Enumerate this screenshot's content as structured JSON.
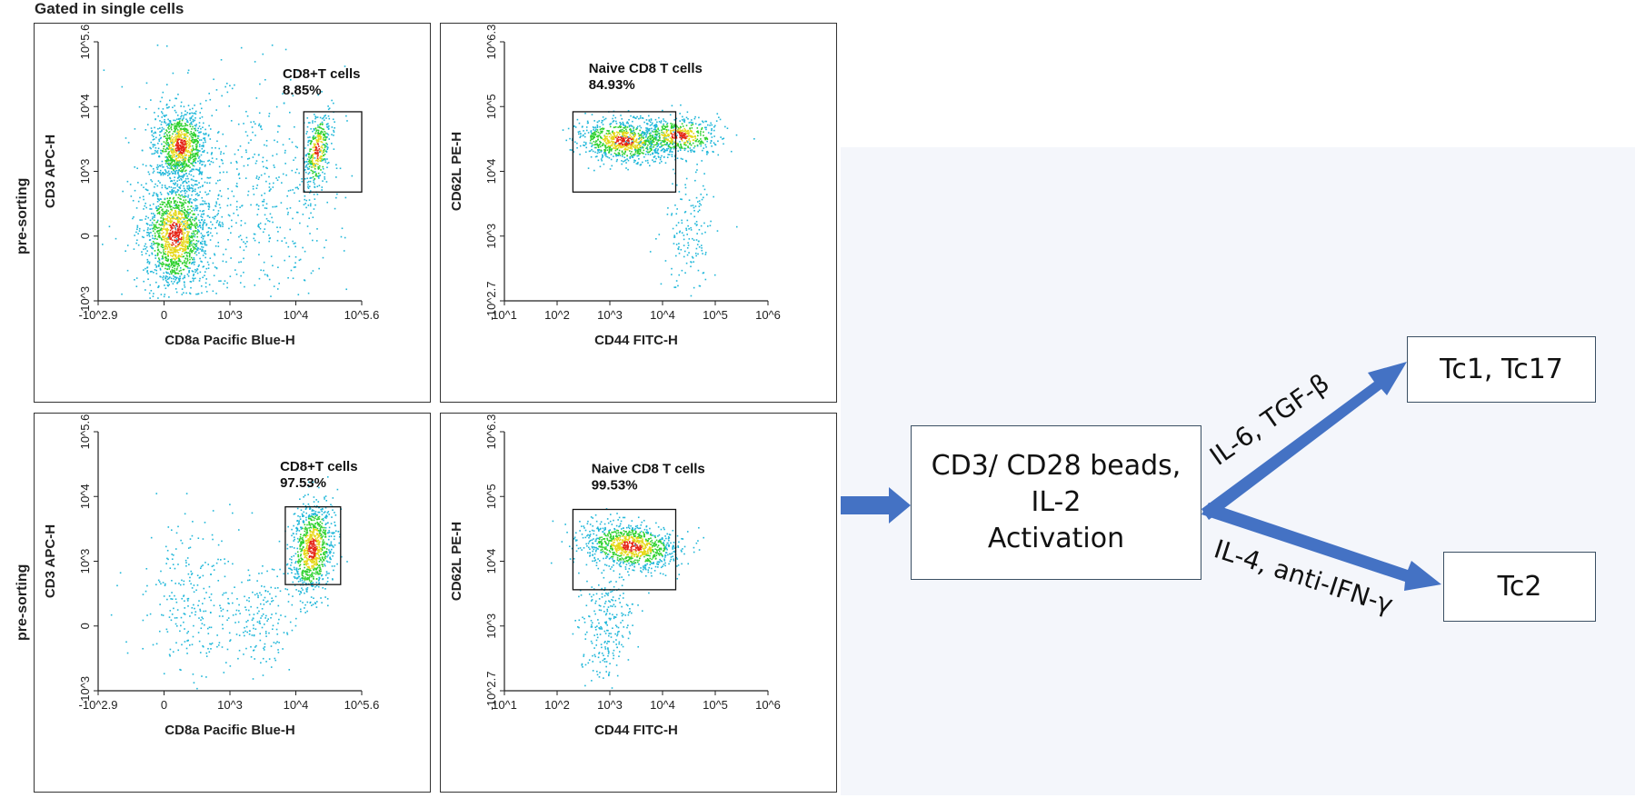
{
  "header": "Gated in single cells",
  "rows": [
    {
      "label": "pre-sorting"
    },
    {
      "label": "pre-sorting"
    }
  ],
  "plots": [
    {
      "id": "cd3-cd8-top",
      "x_label": "CD8a Pacific Blue-H",
      "y_label": "CD3 APC-H",
      "x_ticks": [
        "-10^2.9",
        "0",
        "10^3",
        "10^4",
        "10^5.6"
      ],
      "y_ticks": [
        "10^5.6",
        "10^4",
        "10^3",
        "0",
        "-10^3"
      ],
      "gate_name": "CD8+T cells",
      "gate_pct": "8.85%"
    },
    {
      "id": "cd62l-cd44-top",
      "x_label": "CD44 FITC-H",
      "y_label": "CD62L PE-H",
      "x_ticks": [
        "10^1",
        "10^2",
        "10^3",
        "10^4",
        "10^5",
        "10^6"
      ],
      "y_ticks": [
        "10^6.3",
        "10^5",
        "10^4",
        "10^3",
        "-10^2.7"
      ],
      "gate_name": "Naive CD8 T cells",
      "gate_pct": "84.93%"
    },
    {
      "id": "cd3-cd8-bottom",
      "x_label": "CD8a Pacific Blue-H",
      "y_label": "CD3 APC-H",
      "x_ticks": [
        "-10^2.9",
        "0",
        "10^3",
        "10^4",
        "10^5.6"
      ],
      "y_ticks": [
        "10^5.6",
        "10^4",
        "10^3",
        "0",
        "-10^3"
      ],
      "gate_name": "CD8+T cells",
      "gate_pct": "97.53%"
    },
    {
      "id": "cd62l-cd44-bottom",
      "x_label": "CD44 FITC-H",
      "y_label": "CD62L PE-H",
      "x_ticks": [
        "10^1",
        "10^2",
        "10^3",
        "10^4",
        "10^5",
        "10^6"
      ],
      "y_ticks": [
        "10^6.3",
        "10^5",
        "10^4",
        "10^3",
        "-10^2.7"
      ],
      "gate_name": "Naive CD8 T cells",
      "gate_pct": "99.53%"
    }
  ],
  "flow": {
    "activation_lines": [
      "CD3/ CD28 beads,",
      "IL-2",
      "Activation"
    ],
    "upper_branch_label": "IL-6, TGF-β",
    "lower_branch_label": "IL-4, anti-IFN-γ",
    "tc1_label": "Tc1, Tc17",
    "tc2_label": "Tc2",
    "arrow_color": "#4472c4"
  }
}
